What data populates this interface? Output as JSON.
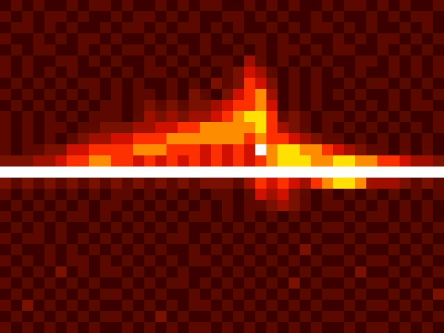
{
  "chart_data": {
    "type": "heatmap",
    "tick_labels": false,
    "zlim": [
      0,
      9
    ],
    "colors": [
      "#000000",
      "#3a0000",
      "#5c0a00",
      "#7a1000",
      "#a01000",
      "#d01000",
      "#ff3000",
      "#ff8c00",
      "#ffe000",
      "#ffffff"
    ],
    "z": [
      [
        1,
        2,
        1,
        2,
        1,
        1,
        2,
        1,
        2,
        2,
        1,
        2,
        1,
        1,
        2,
        1,
        2,
        1,
        2,
        2,
        1,
        1,
        2,
        1,
        2,
        1,
        2,
        1,
        1,
        2,
        1,
        2,
        2,
        1,
        2,
        1,
        2,
        1,
        1,
        2
      ],
      [
        2,
        1,
        2,
        1,
        2,
        2,
        1,
        2,
        1,
        1,
        2,
        1,
        2,
        2,
        1,
        2,
        1,
        2,
        1,
        1,
        2,
        2,
        1,
        2,
        1,
        2,
        1,
        1,
        2,
        1,
        2,
        1,
        1,
        2,
        1,
        2,
        1,
        2,
        2,
        1
      ],
      [
        1,
        2,
        2,
        1,
        2,
        1,
        2,
        1,
        1,
        2,
        1,
        2,
        2,
        1,
        2,
        1,
        2,
        2,
        1,
        2,
        1,
        2,
        1,
        1,
        2,
        1,
        2,
        1,
        2,
        2,
        1,
        2,
        1,
        2,
        1,
        1,
        2,
        1,
        2,
        1
      ],
      [
        2,
        1,
        1,
        2,
        1,
        2,
        1,
        2,
        2,
        1,
        2,
        1,
        1,
        2,
        1,
        2,
        1,
        1,
        2,
        1,
        2,
        1,
        2,
        2,
        1,
        2,
        1,
        2,
        1,
        1,
        2,
        1,
        2,
        1,
        2,
        2,
        1,
        2,
        1,
        2
      ],
      [
        1,
        2,
        1,
        2,
        2,
        1,
        1,
        2,
        1,
        2,
        1,
        2,
        2,
        1,
        2,
        1,
        2,
        1,
        2,
        1,
        1,
        2,
        1,
        2,
        1,
        2,
        2,
        1,
        2,
        1,
        2,
        2,
        1,
        1,
        2,
        1,
        2,
        1,
        2,
        1
      ],
      [
        2,
        1,
        2,
        1,
        1,
        2,
        2,
        1,
        2,
        1,
        2,
        1,
        1,
        2,
        1,
        2,
        1,
        2,
        1,
        2,
        2,
        1,
        4,
        2,
        1,
        2,
        1,
        2,
        1,
        2,
        1,
        1,
        2,
        2,
        1,
        2,
        1,
        2,
        1,
        2
      ],
      [
        2,
        1,
        2,
        1,
        2,
        1,
        2,
        1,
        1,
        2,
        1,
        2,
        1,
        2,
        2,
        1,
        2,
        1,
        2,
        1,
        2,
        3,
        5,
        4,
        2,
        1,
        2,
        1,
        2,
        1,
        2,
        1,
        2,
        1,
        1,
        2,
        1,
        2,
        1,
        2
      ],
      [
        1,
        2,
        1,
        2,
        1,
        2,
        1,
        2,
        2,
        1,
        2,
        1,
        2,
        1,
        1,
        2,
        1,
        2,
        1,
        3,
        2,
        3,
        6,
        5,
        3,
        1,
        2,
        1,
        2,
        1,
        1,
        2,
        1,
        2,
        2,
        1,
        2,
        1,
        2,
        1
      ],
      [
        2,
        1,
        2,
        1,
        2,
        1,
        2,
        1,
        2,
        1,
        2,
        1,
        2,
        2,
        1,
        2,
        1,
        3,
        2,
        1,
        3,
        5,
        6,
        7,
        4,
        1,
        2,
        1,
        2,
        1,
        2,
        1,
        2,
        1,
        1,
        2,
        1,
        2,
        1,
        2
      ],
      [
        1,
        2,
        1,
        2,
        1,
        2,
        1,
        2,
        1,
        2,
        2,
        1,
        2,
        3,
        2,
        3,
        2,
        3,
        3,
        4,
        5,
        6,
        6,
        7,
        5,
        1,
        2,
        1,
        2,
        1,
        1,
        2,
        1,
        2,
        1,
        2,
        1,
        2,
        2,
        1
      ],
      [
        2,
        1,
        2,
        1,
        2,
        1,
        2,
        1,
        2,
        2,
        2,
        1,
        2,
        4,
        3,
        4,
        3,
        4,
        4,
        5,
        6,
        7,
        8,
        8,
        6,
        2,
        3,
        2,
        1,
        2,
        2,
        1,
        2,
        1,
        2,
        1,
        2,
        1,
        1,
        2
      ],
      [
        2,
        1,
        2,
        1,
        2,
        2,
        1,
        2,
        2,
        3,
        3,
        3,
        4,
        4,
        5,
        5,
        6,
        6,
        7,
        7,
        7,
        7,
        7,
        8,
        6,
        4,
        3,
        2,
        1,
        2,
        1,
        2,
        1,
        2,
        1,
        2,
        1,
        2,
        1,
        2
      ],
      [
        2,
        1,
        2,
        1,
        2,
        1,
        2,
        3,
        4,
        4,
        5,
        5,
        6,
        6,
        6,
        7,
        7,
        7,
        7,
        7,
        7,
        7,
        6,
        7,
        6,
        6,
        5,
        4,
        3,
        2,
        2,
        1,
        2,
        1,
        2,
        1,
        2,
        1,
        2,
        1
      ],
      [
        2,
        1,
        2,
        2,
        3,
        3,
        5,
        5,
        6,
        6,
        6,
        6,
        7,
        7,
        7,
        6,
        6,
        6,
        5,
        6,
        5,
        6,
        5,
        9,
        7,
        8,
        8,
        7,
        7,
        6,
        5,
        4,
        3,
        2,
        2,
        1,
        2,
        1,
        2,
        1
      ],
      [
        3,
        3,
        3,
        4,
        4,
        5,
        6,
        6,
        7,
        7,
        6,
        6,
        5,
        6,
        5,
        6,
        5,
        6,
        5,
        6,
        5,
        6,
        5,
        6,
        7,
        8,
        8,
        8,
        7,
        7,
        8,
        8,
        7,
        7,
        6,
        6,
        5,
        4,
        4,
        3
      ],
      [
        9,
        9,
        9,
        9,
        9,
        9,
        9,
        9,
        9,
        9,
        9,
        9,
        9,
        9,
        9,
        9,
        9,
        9,
        9,
        9,
        9,
        9,
        9,
        9,
        9,
        9,
        9,
        9,
        9,
        9,
        9,
        9,
        9,
        9,
        9,
        9,
        9,
        9,
        9,
        9
      ],
      [
        3,
        2,
        3,
        2,
        3,
        2,
        3,
        2,
        3,
        2,
        3,
        2,
        3,
        2,
        3,
        2,
        3,
        2,
        3,
        3,
        3,
        2,
        4,
        6,
        5,
        6,
        5,
        4,
        6,
        7,
        8,
        8,
        7,
        4,
        4,
        4,
        3,
        2,
        3,
        2
      ],
      [
        2,
        1,
        2,
        1,
        2,
        1,
        2,
        1,
        2,
        1,
        2,
        2,
        1,
        2,
        1,
        2,
        1,
        2,
        1,
        2,
        2,
        1,
        2,
        5,
        4,
        5,
        3,
        2,
        1,
        2,
        1,
        2,
        1,
        2,
        1,
        2,
        1,
        2,
        1,
        2
      ],
      [
        1,
        2,
        1,
        2,
        1,
        2,
        1,
        2,
        1,
        2,
        2,
        1,
        2,
        1,
        2,
        1,
        2,
        1,
        2,
        1,
        2,
        1,
        2,
        2,
        3,
        4,
        3,
        2,
        1,
        2,
        2,
        1,
        2,
        1,
        2,
        1,
        2,
        1,
        2,
        1
      ],
      [
        2,
        1,
        2,
        1,
        2,
        1,
        2,
        2,
        1,
        2,
        1,
        2,
        1,
        2,
        1,
        2,
        1,
        2,
        2,
        1,
        2,
        1,
        2,
        1,
        2,
        1,
        2,
        1,
        2,
        1,
        1,
        2,
        1,
        2,
        2,
        1,
        2,
        1,
        2,
        1
      ],
      [
        1,
        2,
        1,
        2,
        1,
        2,
        1,
        1,
        2,
        1,
        2,
        1,
        2,
        1,
        2,
        1,
        2,
        1,
        1,
        2,
        1,
        2,
        1,
        2,
        1,
        2,
        1,
        2,
        1,
        2,
        2,
        1,
        2,
        1,
        1,
        2,
        1,
        2,
        1,
        2
      ],
      [
        2,
        1,
        2,
        2,
        1,
        2,
        1,
        2,
        1,
        2,
        1,
        2,
        1,
        2,
        1,
        2,
        2,
        1,
        2,
        1,
        2,
        1,
        2,
        1,
        2,
        1,
        2,
        1,
        2,
        1,
        1,
        2,
        1,
        2,
        2,
        1,
        2,
        1,
        2,
        1
      ],
      [
        1,
        2,
        1,
        1,
        2,
        1,
        2,
        1,
        2,
        1,
        2,
        1,
        2,
        1,
        2,
        1,
        1,
        2,
        1,
        2,
        1,
        2,
        1,
        2,
        1,
        2,
        1,
        3,
        1,
        2,
        2,
        1,
        2,
        1,
        1,
        2,
        1,
        2,
        1,
        2
      ],
      [
        2,
        1,
        2,
        1,
        2,
        1,
        2,
        2,
        1,
        2,
        1,
        2,
        1,
        2,
        1,
        2,
        1,
        2,
        2,
        1,
        2,
        1,
        2,
        1,
        2,
        1,
        2,
        1,
        2,
        1,
        1,
        2,
        1,
        2,
        2,
        1,
        2,
        1,
        2,
        1
      ],
      [
        1,
        2,
        1,
        2,
        1,
        3,
        1,
        2,
        1,
        2,
        2,
        1,
        2,
        1,
        2,
        1,
        2,
        1,
        1,
        2,
        1,
        2,
        1,
        2,
        1,
        2,
        1,
        2,
        1,
        2,
        2,
        1,
        3,
        1,
        1,
        2,
        1,
        2,
        1,
        2
      ],
      [
        2,
        1,
        2,
        1,
        2,
        1,
        2,
        1,
        2,
        1,
        1,
        2,
        1,
        2,
        1,
        2,
        2,
        1,
        2,
        1,
        2,
        1,
        2,
        1,
        2,
        1,
        3,
        1,
        2,
        1,
        1,
        2,
        1,
        2,
        2,
        1,
        2,
        1,
        2,
        1
      ],
      [
        1,
        2,
        1,
        2,
        1,
        2,
        1,
        2,
        1,
        2,
        2,
        1,
        2,
        1,
        2,
        1,
        1,
        2,
        1,
        2,
        1,
        2,
        1,
        2,
        1,
        2,
        1,
        2,
        1,
        2,
        2,
        1,
        2,
        1,
        1,
        2,
        1,
        2,
        1,
        3
      ],
      [
        2,
        1,
        3,
        1,
        2,
        1,
        2,
        1,
        2,
        1,
        1,
        2,
        1,
        2,
        1,
        2,
        1,
        2,
        2,
        1,
        2,
        1,
        2,
        1,
        2,
        1,
        2,
        1,
        2,
        1,
        1,
        2,
        1,
        2,
        2,
        1,
        2,
        1,
        2,
        1
      ],
      [
        1,
        2,
        1,
        2,
        1,
        2,
        1,
        2,
        1,
        2,
        2,
        1,
        2,
        1,
        3,
        1,
        2,
        1,
        1,
        2,
        1,
        2,
        1,
        2,
        1,
        2,
        1,
        2,
        1,
        2,
        2,
        1,
        2,
        1,
        1,
        2,
        1,
        2,
        1,
        2
      ],
      [
        2,
        1,
        2,
        1,
        2,
        1,
        2,
        1,
        2,
        1,
        1,
        2,
        1,
        2,
        1,
        2,
        1,
        2,
        2,
        1,
        2,
        1,
        2,
        1,
        2,
        1,
        2,
        1,
        2,
        1,
        1,
        2,
        1,
        2,
        2,
        1,
        2,
        1,
        2,
        1
      ]
    ]
  }
}
